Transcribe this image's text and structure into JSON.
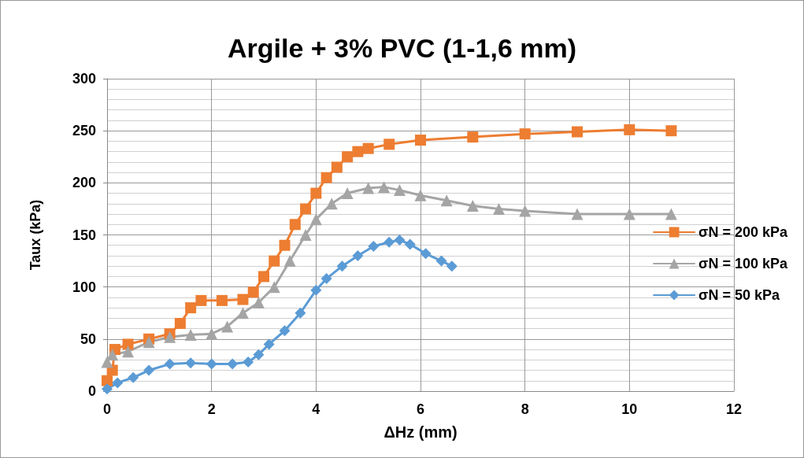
{
  "chart_data": {
    "type": "line",
    "title": "Argile + 3% PVC (1-1,6 mm)",
    "xlabel": "ΔHz (mm)",
    "ylabel": "Taux (kPa)",
    "xlim": [
      0,
      12
    ],
    "xticks": [
      0,
      2,
      4,
      6,
      8,
      10,
      12
    ],
    "ylim": [
      0,
      300
    ],
    "yticks": [
      0,
      50,
      100,
      150,
      200,
      250,
      300
    ],
    "grid": true,
    "legend": "right",
    "line_style": "solid",
    "series": [
      {
        "name": "σN = 200 kPa",
        "color": "#ed7d31",
        "marker": "square",
        "x": [
          0,
          0.1,
          0.15,
          0.4,
          0.8,
          1.2,
          1.4,
          1.6,
          1.8,
          2.2,
          2.6,
          2.8,
          3.0,
          3.2,
          3.4,
          3.6,
          3.8,
          4.0,
          4.2,
          4.4,
          4.6,
          4.8,
          5.0,
          5.4,
          6.0,
          7,
          8,
          9,
          10,
          10.8
        ],
        "values": [
          10,
          20,
          40,
          45,
          50,
          55,
          65,
          80,
          87,
          87,
          88,
          95,
          110,
          125,
          140,
          160,
          175,
          190,
          205,
          215,
          225,
          230,
          233,
          237,
          241,
          244,
          247,
          249,
          251,
          250
        ]
      },
      {
        "name": "σN = 100 kPa",
        "color": "#a5a5a5",
        "marker": "triangle",
        "x": [
          0,
          0.1,
          0.4,
          0.8,
          1.2,
          1.6,
          2.0,
          2.3,
          2.6,
          2.9,
          3.2,
          3.5,
          3.8,
          4.0,
          4.3,
          4.6,
          5.0,
          5.3,
          5.6,
          6.0,
          6.5,
          7,
          7.5,
          8,
          9,
          10,
          10.8
        ],
        "values": [
          28,
          35,
          38,
          47,
          52,
          54,
          55,
          62,
          75,
          85,
          100,
          125,
          150,
          165,
          180,
          190,
          195,
          196,
          193,
          188,
          183,
          178,
          175,
          173,
          170,
          170,
          170
        ]
      },
      {
        "name": "σN = 50 kPa",
        "color": "#5b9bd5",
        "marker": "diamond",
        "x": [
          0,
          0.2,
          0.5,
          0.8,
          1.2,
          1.6,
          2.0,
          2.4,
          2.7,
          2.9,
          3.1,
          3.4,
          3.7,
          4.0,
          4.2,
          4.5,
          4.8,
          5.1,
          5.4,
          5.6,
          5.8,
          6.1,
          6.4,
          6.6
        ],
        "values": [
          2,
          8,
          13,
          20,
          26,
          27,
          26,
          26,
          28,
          35,
          45,
          58,
          75,
          97,
          108,
          120,
          130,
          139,
          143,
          145,
          141,
          132,
          125,
          120
        ]
      }
    ]
  }
}
